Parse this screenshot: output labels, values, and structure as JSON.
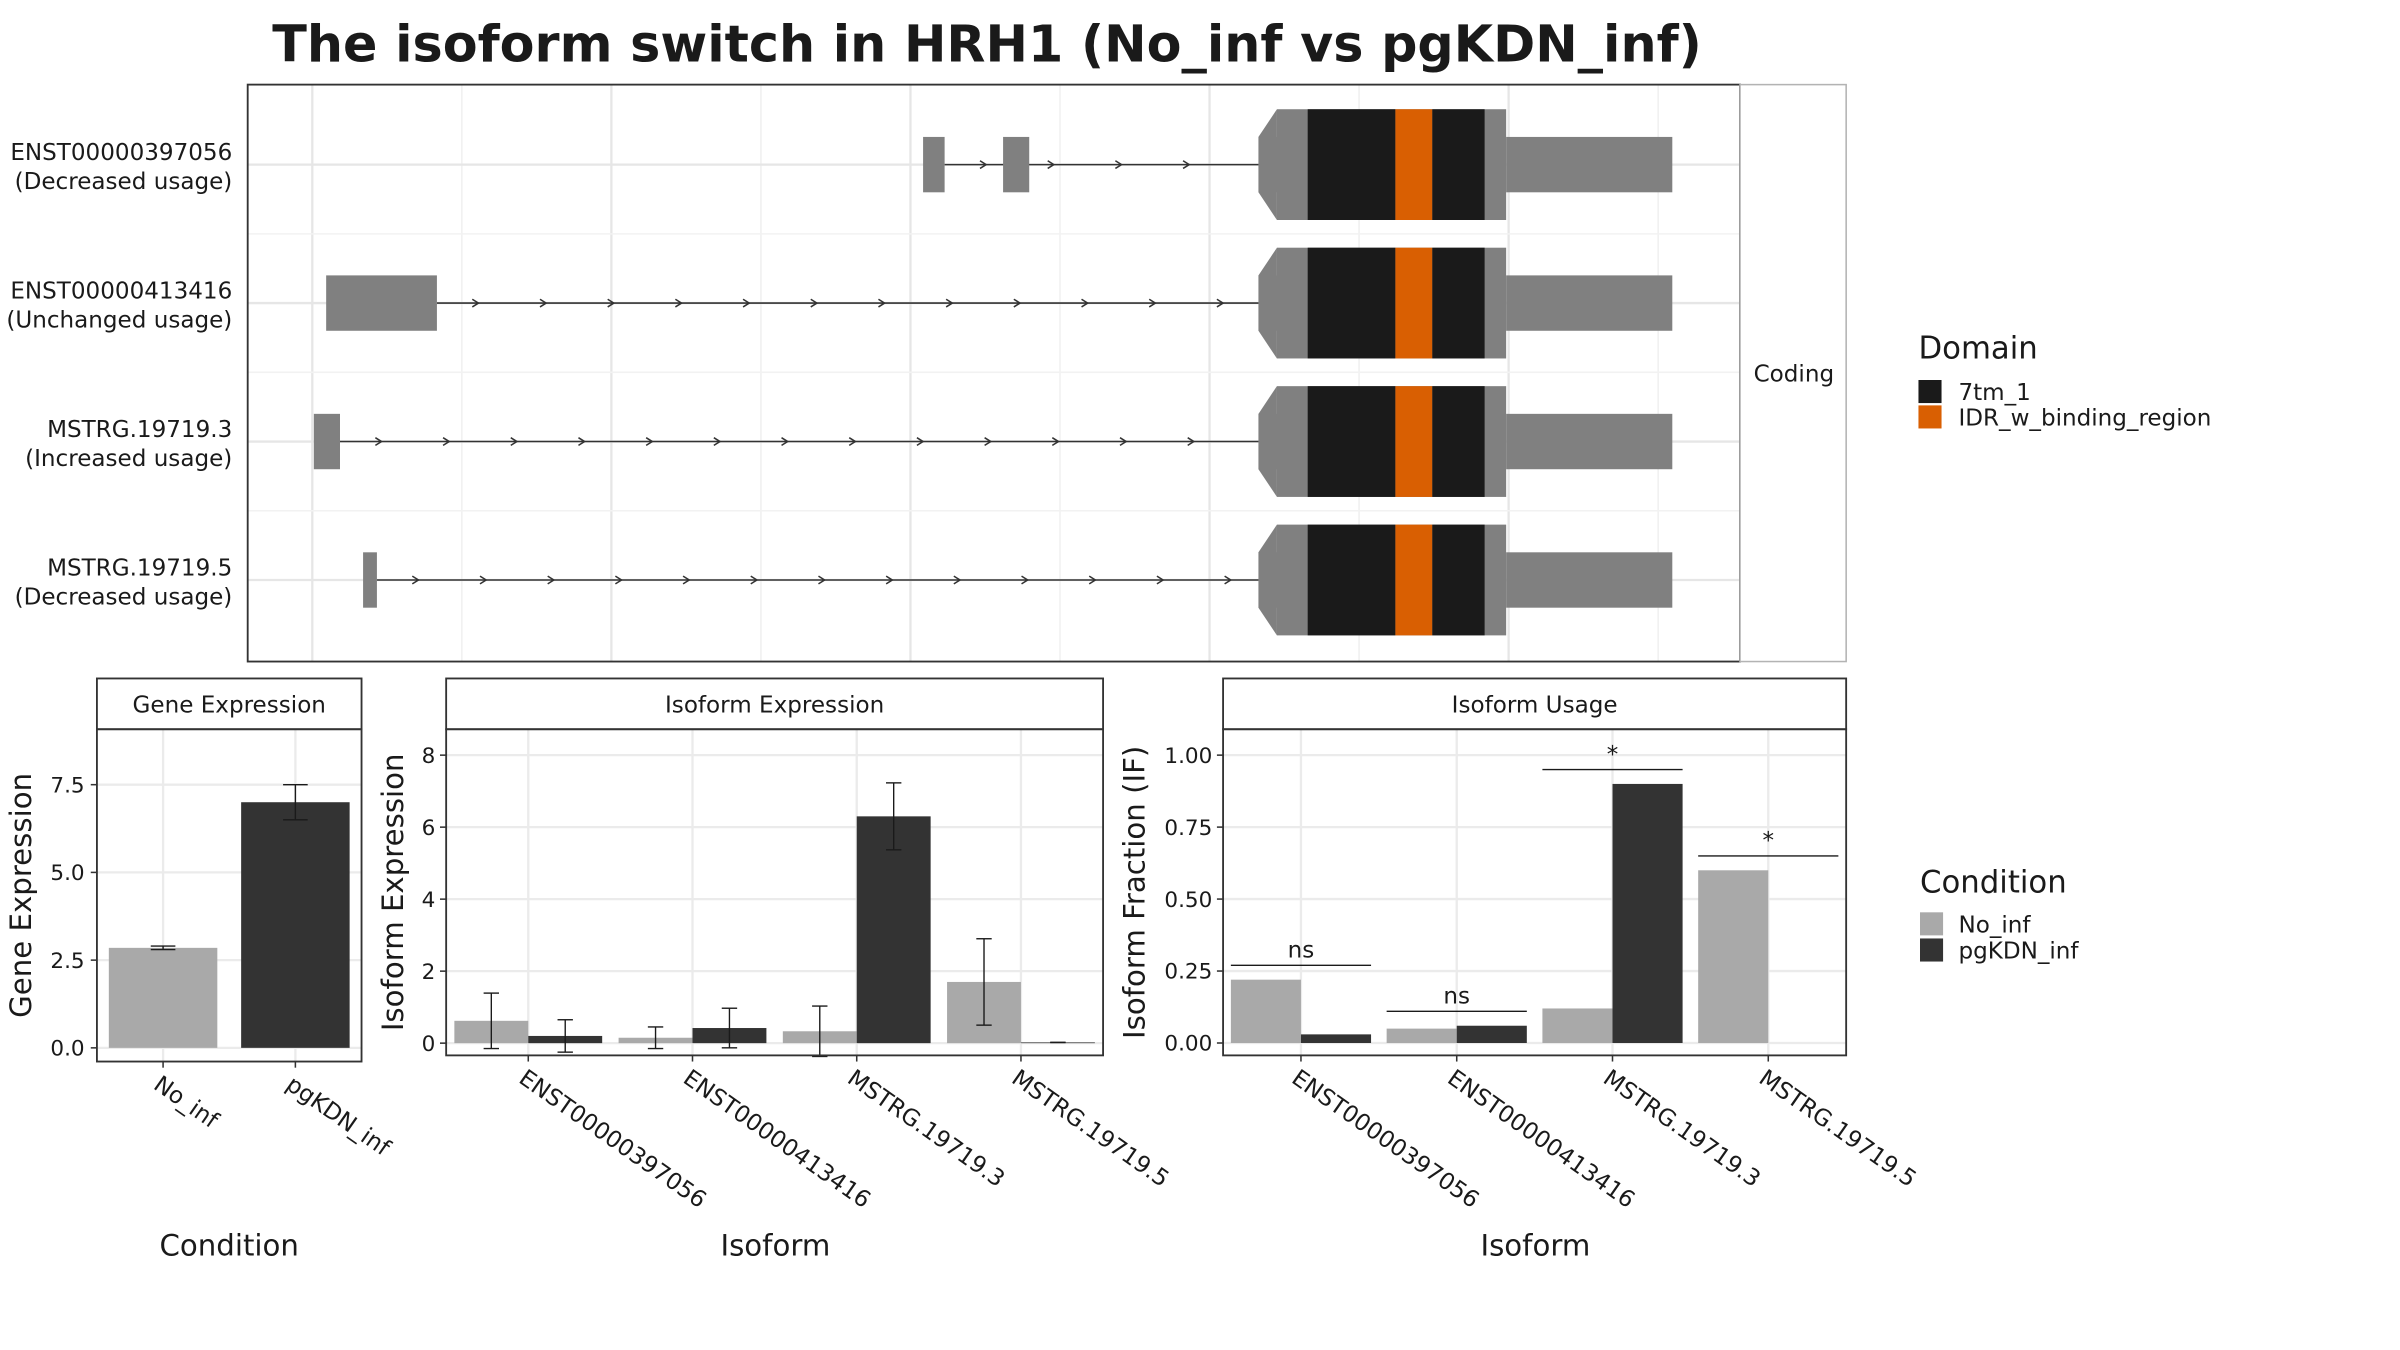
{
  "chart_data": [
    {
      "type": "transcript",
      "title": "The isoform switch in HRH1 (No_inf vs pgKDN_inf)",
      "transcripts": [
        {
          "name": "ENST00000397056",
          "usage": "(Decreased usage)"
        },
        {
          "name": "ENST00000413416",
          "usage": "(Unchanged usage)"
        },
        {
          "name": "MSTRG.19719.3",
          "usage": "(Increased usage)"
        },
        {
          "name": "MSTRG.19719.5",
          "usage": "(Decreased usage)"
        }
      ],
      "facet": "Coding",
      "legend_title": "Domain",
      "domains": [
        {
          "name": "7tm_1",
          "color": "#1a1a1a"
        },
        {
          "name": "IDR_w_binding_region",
          "color": "#d95f02"
        }
      ]
    },
    {
      "type": "bar",
      "strip": "Gene Expression",
      "xlabel": "Condition",
      "ylabel": "Gene Expression",
      "categories": [
        "No_inf",
        "pgKDN_inf"
      ],
      "values": [
        2.85,
        7.0
      ],
      "errors": [
        0.05,
        0.5
      ],
      "colors": [
        "#a9a9a9",
        "#333333"
      ],
      "ylim": [
        -0.39,
        9.08
      ],
      "yticks": [
        {
          "value": 0,
          "label": "0.0"
        },
        {
          "value": 2.5,
          "label": "2.5"
        },
        {
          "value": 5,
          "label": "5.0"
        },
        {
          "value": 7.5,
          "label": "7.5"
        }
      ],
      "grid": true
    },
    {
      "type": "grouped_bar",
      "strip": "Isoform Expression",
      "xlabel": "Isoform",
      "ylabel": "Isoform Expression",
      "categories": [
        "ENST00000397056",
        "ENST00000413416",
        "MSTRG.19719.3",
        "MSTRG.19719.5"
      ],
      "series": [
        {
          "name": "No_inf",
          "color": "#a9a9a9",
          "values": [
            0.62,
            0.15,
            0.33,
            1.7
          ],
          "errors": [
            0.77,
            0.3,
            0.7,
            1.2
          ]
        },
        {
          "name": "pgKDN_inf",
          "color": "#333333",
          "values": [
            0.2,
            0.42,
            6.3,
            0.02
          ],
          "errors": [
            0.45,
            0.55,
            0.93,
            0
          ]
        }
      ],
      "ylim": [
        -0.34,
        8.72
      ],
      "yticks": [
        0,
        2,
        4,
        6,
        8
      ],
      "grid": true
    },
    {
      "type": "grouped_bar",
      "strip": "Isoform Usage",
      "xlabel": "Isoform",
      "ylabel": "Isoform Fraction (IF)",
      "categories": [
        "ENST00000397056",
        "ENST00000413416",
        "MSTRG.19719.3",
        "MSTRG.19719.5"
      ],
      "series": [
        {
          "name": "No_inf",
          "color": "#a9a9a9",
          "values": [
            0.22,
            0.05,
            0.12,
            0.6
          ]
        },
        {
          "name": "pgKDN_inf",
          "color": "#333333",
          "values": [
            0.03,
            0.06,
            0.9,
            0.0
          ]
        }
      ],
      "annotations": [
        "ns",
        "ns",
        "*",
        "*"
      ],
      "annotation_y": [
        0.27,
        0.11,
        0.95,
        0.65
      ],
      "ylim": [
        -0.043,
        1.09
      ],
      "yticks": [
        {
          "value": 0,
          "label": "0.00"
        },
        {
          "value": 0.25,
          "label": "0.25"
        },
        {
          "value": 0.5,
          "label": "0.50"
        },
        {
          "value": 0.75,
          "label": "0.75"
        },
        {
          "value": 1,
          "label": "1.00"
        }
      ],
      "grid": true,
      "legend_title": "Condition"
    }
  ]
}
